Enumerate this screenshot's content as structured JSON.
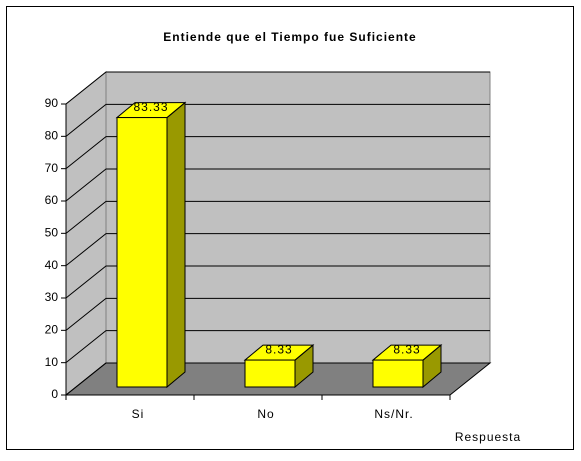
{
  "chart_data": {
    "type": "bar3d",
    "title": "Entiende que el Tiempo fue Suficiente",
    "x_label": "Respuesta",
    "categories": [
      "Si",
      "No",
      "Ns/Nr."
    ],
    "values": [
      83.33,
      8.33,
      8.33
    ],
    "color": "#ffff00",
    "ylim": [
      0,
      90
    ],
    "yticks": [
      0,
      10,
      20,
      30,
      40,
      50,
      60,
      70,
      80,
      90
    ],
    "grid": true
  }
}
